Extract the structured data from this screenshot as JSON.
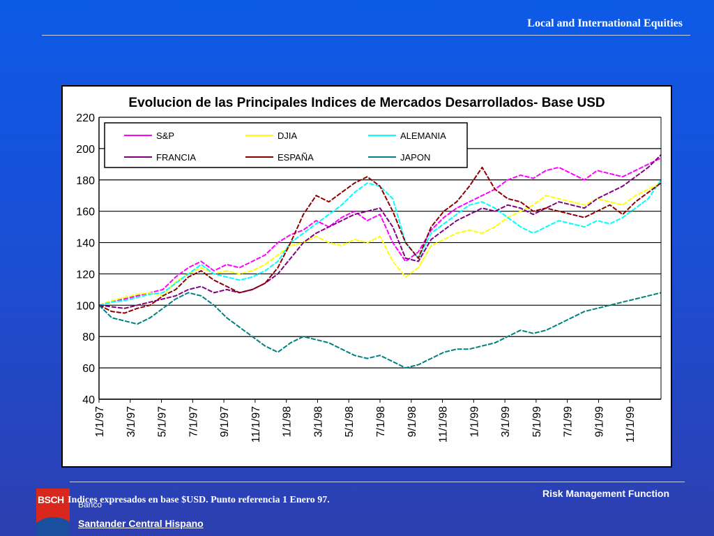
{
  "header": {
    "title": "Local and International Equities"
  },
  "footer": {
    "right_label": "Risk Management Function",
    "note": "Indices expresados en  base $USD. Punto referencia  1 Enero 97.",
    "logo_text": "BSCH",
    "bank_small": "Banco",
    "bank_name": "Santander Central Hispano"
  },
  "chart_data": {
    "type": "line",
    "title": "Evolucion de las Principales Indices de Mercados Desarrollados- Base USD",
    "xlabel": "",
    "ylabel": "",
    "ylim": [
      40,
      220
    ],
    "yticks": [
      40,
      60,
      80,
      100,
      120,
      140,
      160,
      180,
      200,
      220
    ],
    "xlim": [
      0,
      36
    ],
    "xticks": [
      "1/1/97",
      "3/1/97",
      "5/1/97",
      "7/1/97",
      "9/1/97",
      "11/1/97",
      "1/1/98",
      "3/1/98",
      "5/1/98",
      "7/1/98",
      "9/1/98",
      "11/1/98",
      "1/1/99",
      "3/1/99",
      "5/1/99",
      "7/1/99",
      "9/1/99",
      "11/1/99"
    ],
    "grid": true,
    "legend_position": "top-left",
    "series": [
      {
        "name": "S&P",
        "color": "#ff00ff",
        "dash": "solid",
        "values": [
          100,
          102,
          104,
          106,
          108,
          110,
          118,
          124,
          128,
          122,
          126,
          124,
          128,
          132,
          140,
          145,
          148,
          154,
          150,
          156,
          160,
          154,
          158,
          140,
          128,
          134,
          148,
          156,
          162,
          166,
          170,
          174,
          180,
          183,
          181,
          186,
          188,
          184,
          180,
          186,
          184,
          182,
          186,
          190,
          194
        ]
      },
      {
        "name": "DJIA",
        "color": "#ffff00",
        "dash": "solid",
        "values": [
          100,
          103,
          105,
          107,
          108,
          106,
          115,
          120,
          124,
          120,
          122,
          120,
          122,
          126,
          132,
          138,
          140,
          144,
          140,
          138,
          142,
          140,
          144,
          128,
          118,
          124,
          138,
          142,
          146,
          148,
          146,
          150,
          156,
          160,
          164,
          170,
          168,
          166,
          164,
          168,
          166,
          164,
          170,
          174,
          178
        ]
      },
      {
        "name": "ALEMANIA",
        "color": "#00ffff",
        "dash": "solid",
        "values": [
          100,
          102,
          103,
          105,
          107,
          108,
          114,
          120,
          126,
          120,
          118,
          116,
          118,
          122,
          128,
          140,
          146,
          152,
          158,
          164,
          172,
          178,
          176,
          168,
          140,
          130,
          146,
          152,
          158,
          164,
          166,
          162,
          156,
          150,
          146,
          150,
          154,
          152,
          150,
          154,
          152,
          156,
          162,
          168,
          180
        ]
      },
      {
        "name": "FRANCIA",
        "color": "#800080",
        "dash": "solid",
        "values": [
          100,
          99,
          98,
          100,
          102,
          104,
          106,
          110,
          112,
          108,
          110,
          108,
          110,
          114,
          120,
          130,
          140,
          146,
          150,
          154,
          158,
          160,
          162,
          150,
          130,
          128,
          142,
          148,
          154,
          158,
          162,
          160,
          164,
          162,
          158,
          162,
          166,
          164,
          162,
          168,
          172,
          176,
          182,
          188,
          196
        ]
      },
      {
        "name": "ESPAÑA",
        "color": "#8b0000",
        "dash": "solid",
        "values": [
          100,
          96,
          95,
          98,
          100,
          106,
          110,
          118,
          122,
          116,
          112,
          108,
          110,
          114,
          124,
          140,
          158,
          170,
          166,
          172,
          178,
          182,
          176,
          160,
          140,
          130,
          150,
          160,
          166,
          176,
          188,
          174,
          168,
          166,
          160,
          162,
          160,
          158,
          156,
          160,
          164,
          158,
          166,
          172,
          178
        ]
      },
      {
        "name": "JAPON",
        "color": "#008080",
        "dash": "solid",
        "values": [
          100,
          92,
          90,
          88,
          92,
          98,
          104,
          108,
          106,
          100,
          92,
          86,
          80,
          74,
          70,
          76,
          80,
          78,
          76,
          72,
          68,
          66,
          68,
          64,
          60,
          62,
          66,
          70,
          72,
          72,
          74,
          76,
          80,
          84,
          82,
          84,
          88,
          92,
          96,
          98,
          100,
          102,
          104,
          106,
          108
        ]
      }
    ]
  }
}
